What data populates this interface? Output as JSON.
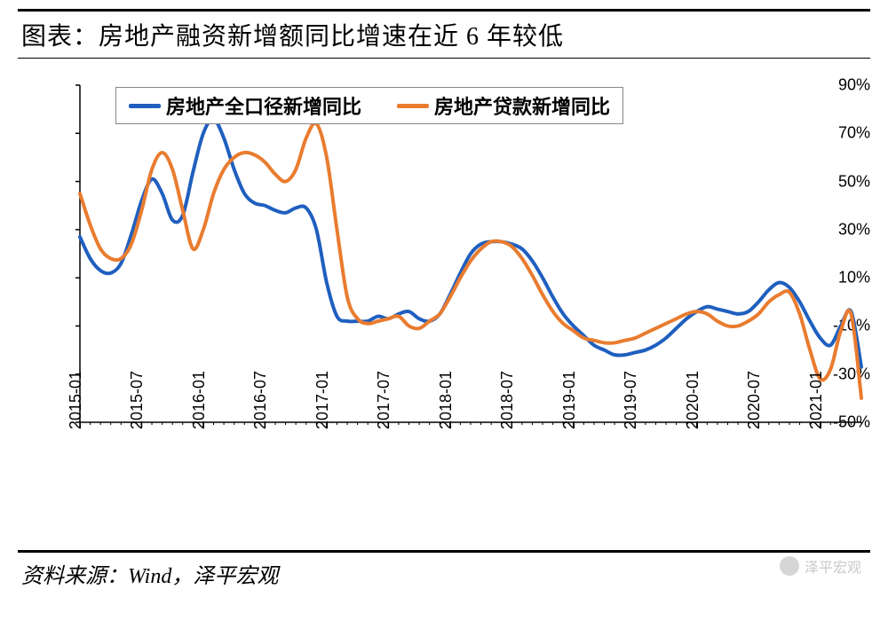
{
  "title": "图表：房地产融资新增额同比增速在近 6 年较低",
  "source": "资料来源：Wind，泽平宏观",
  "watermark": "泽平宏观",
  "chart": {
    "type": "line",
    "background_color": "#ffffff",
    "axis_color": "#000000",
    "tick_color": "#000000",
    "title_fontsize": 28,
    "tick_fontsize": 18,
    "legend_fontsize": 22,
    "line_width": 4,
    "ylim": [
      -50,
      90
    ],
    "ytick_step": 20,
    "yticks": [
      "-50%",
      "-30%",
      "-10%",
      "10%",
      "30%",
      "50%",
      "70%",
      "90%"
    ],
    "xticks": [
      "2015-01",
      "2015-07",
      "2016-01",
      "2016-07",
      "2017-01",
      "2017-07",
      "2018-01",
      "2018-07",
      "2019-01",
      "2019-07",
      "2020-01",
      "2020-07",
      "2021-01"
    ],
    "x_labels": [
      "2015-01",
      "2015-02",
      "2015-03",
      "2015-04",
      "2015-05",
      "2015-06",
      "2015-07",
      "2015-08",
      "2015-09",
      "2015-10",
      "2015-11",
      "2015-12",
      "2016-01",
      "2016-02",
      "2016-03",
      "2016-04",
      "2016-05",
      "2016-06",
      "2016-07",
      "2016-08",
      "2016-09",
      "2016-10",
      "2016-11",
      "2016-12",
      "2017-01",
      "2017-02",
      "2017-03",
      "2017-04",
      "2017-05",
      "2017-06",
      "2017-07",
      "2017-08",
      "2017-09",
      "2017-10",
      "2017-11",
      "2017-12",
      "2018-01",
      "2018-02",
      "2018-03",
      "2018-04",
      "2018-05",
      "2018-06",
      "2018-07",
      "2018-08",
      "2018-09",
      "2018-10",
      "2018-11",
      "2018-12",
      "2019-01",
      "2019-02",
      "2019-03",
      "2019-04",
      "2019-05",
      "2019-06",
      "2019-07",
      "2019-08",
      "2019-09",
      "2019-10",
      "2019-11",
      "2019-12",
      "2020-01",
      "2020-02",
      "2020-03",
      "2020-04",
      "2020-05",
      "2020-06",
      "2020-07",
      "2020-08",
      "2020-09",
      "2020-10",
      "2020-11",
      "2020-12",
      "2021-01",
      "2021-02",
      "2021-03",
      "2021-04",
      "2021-05"
    ],
    "legend": {
      "position": "top",
      "border_color": "#888888"
    },
    "series": [
      {
        "name": "房地产全口径新增同比",
        "color": "#1f5fbf",
        "values": [
          27,
          18,
          13,
          12,
          16,
          28,
          42,
          51,
          45,
          34,
          36,
          54,
          70,
          76,
          68,
          55,
          45,
          41,
          40,
          38,
          37,
          39,
          39,
          30,
          8,
          -6,
          -8,
          -8,
          -8,
          -6,
          -7,
          -5,
          -4,
          -7,
          -8,
          -5,
          3,
          12,
          20,
          24,
          25,
          25,
          24,
          22,
          17,
          10,
          2,
          -5,
          -10,
          -14,
          -18,
          -20,
          -22,
          -22,
          -21,
          -20,
          -18,
          -15,
          -11,
          -7,
          -4,
          -2,
          -3,
          -4,
          -5,
          -4,
          0,
          5,
          8,
          6,
          0,
          -8,
          -15,
          -18,
          -10,
          -4,
          -27
        ]
      },
      {
        "name": "房地产贷款新增同比",
        "color": "#e97c2f",
        "values": [
          45,
          32,
          22,
          18,
          18,
          24,
          38,
          55,
          62,
          55,
          38,
          22,
          30,
          45,
          55,
          60,
          62,
          61,
          58,
          53,
          50,
          55,
          68,
          74,
          60,
          30,
          2,
          -7,
          -9,
          -8,
          -7,
          -6,
          -10,
          -11,
          -8,
          -5,
          2,
          10,
          17,
          22,
          25,
          25,
          23,
          18,
          11,
          3,
          -4,
          -9,
          -12,
          -15,
          -16,
          -17,
          -17,
          -16,
          -15,
          -13,
          -11,
          -9,
          -7,
          -5,
          -4,
          -5,
          -8,
          -10,
          -10,
          -8,
          -5,
          0,
          3,
          4,
          -5,
          -20,
          -32,
          -28,
          -12,
          -5,
          -40
        ]
      }
    ]
  }
}
